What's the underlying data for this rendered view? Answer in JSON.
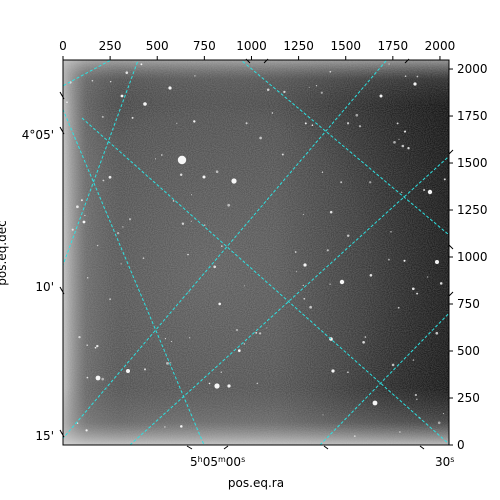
{
  "chart_data": {
    "type": "image",
    "title": "",
    "xlabel": "pos.eq.ra",
    "ylabel": "pos.eq.dec",
    "pixel_axes": {
      "x_ticks": [
        0,
        250,
        500,
        750,
        1000,
        1250,
        1500,
        1750,
        2000
      ],
      "y_ticks": [
        0,
        250,
        500,
        750,
        1000,
        1250,
        1500,
        1750,
        2000
      ],
      "xlim": [
        0,
        2048
      ],
      "ylim": [
        0,
        2048
      ]
    },
    "world_axes": {
      "ra_tick_labels": [
        {
          "h": "5",
          "m": "05",
          "s": "00"
        },
        {
          "h": "",
          "m": "",
          "s": "30"
        }
      ],
      "dec_tick_labels": [
        "4°05'",
        "10'",
        "15'"
      ]
    },
    "grid": true,
    "grid_color": "#2ee0e0",
    "colormap": "gray"
  }
}
